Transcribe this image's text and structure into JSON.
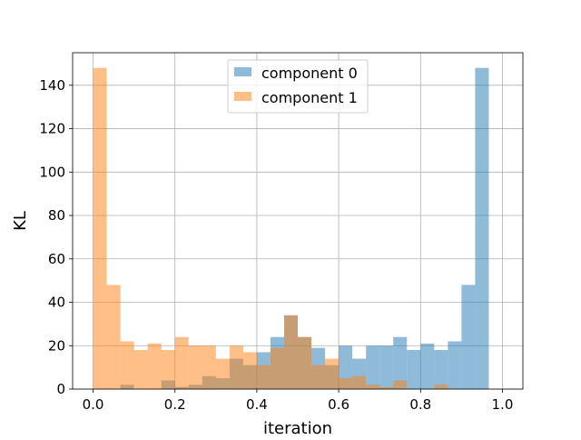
{
  "chart_data": {
    "type": "histogram",
    "xlabel": "iteration",
    "ylabel": "KL",
    "xlim": [
      -0.05,
      1.05
    ],
    "ylim": [
      0,
      155
    ],
    "xticks": [
      0.0,
      0.2,
      0.4,
      0.6,
      0.8,
      1.0
    ],
    "xtick_labels": [
      "0.0",
      "0.2",
      "0.4",
      "0.6",
      "0.8",
      "1.0"
    ],
    "yticks": [
      0,
      20,
      40,
      60,
      80,
      100,
      120,
      140
    ],
    "ytick_labels": [
      "0",
      "20",
      "40",
      "60",
      "80",
      "100",
      "120",
      "140"
    ],
    "grid": true,
    "legend_position": "upper center",
    "bin_edges": [
      0.0,
      0.0333,
      0.0667,
      0.1,
      0.1333,
      0.1667,
      0.2,
      0.2333,
      0.2667,
      0.3,
      0.3333,
      0.3667,
      0.4,
      0.4333,
      0.4667,
      0.5,
      0.5333,
      0.5667,
      0.6,
      0.6333,
      0.6667,
      0.7,
      0.7333,
      0.7667,
      0.8,
      0.8333,
      0.8667,
      0.9,
      0.9333,
      0.9667,
      1.0
    ],
    "series": [
      {
        "name": "component 0",
        "color": "#1f77b4",
        "opacity": 0.5,
        "values": [
          0,
          0,
          2,
          0,
          0,
          4,
          1,
          2,
          6,
          5,
          14,
          11,
          17,
          24,
          34,
          24,
          19,
          11,
          20,
          14,
          20,
          20,
          24,
          18,
          21,
          18,
          22,
          48,
          148,
          0
        ]
      },
      {
        "name": "component 1",
        "color": "#ff7f0e",
        "opacity": 0.5,
        "values": [
          148,
          48,
          22,
          18,
          21,
          18,
          24,
          20,
          20,
          14,
          20,
          17,
          11,
          19,
          34,
          24,
          11,
          14,
          5,
          6,
          2,
          1,
          4,
          0,
          0,
          2,
          0,
          0,
          0,
          0
        ]
      }
    ]
  }
}
